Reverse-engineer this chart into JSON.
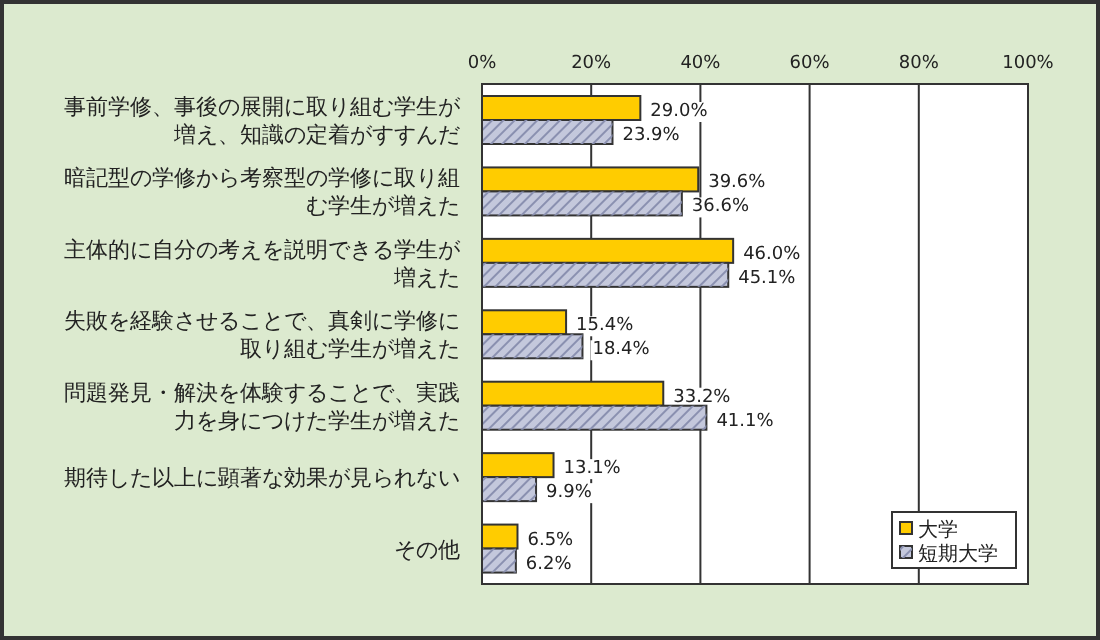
{
  "chart_data": {
    "type": "bar",
    "orientation": "horizontal",
    "categories": [
      "事前学修、事後の展開に取り組む学生が増え、知識の定着がすすんだ",
      "暗記型の学修から考察型の学修に取り組む学生が増えた",
      "主体的に自分の考えを説明できる学生が増えた",
      "失敗を経験させることで、真剣に学修に取り組む学生が増えた",
      "問題発見・解決を体験することで、実践力を身につけた学生が増えた",
      "期待した以上に顕著な効果が見られない",
      "その他"
    ],
    "series": [
      {
        "name": "大学",
        "color": "#ffcc00",
        "values": [
          29.0,
          39.6,
          46.0,
          15.4,
          33.2,
          13.1,
          6.5
        ],
        "value_labels": [
          "29.0%",
          "39.6%",
          "46.0%",
          "15.4%",
          "33.2%",
          "13.1%",
          "6.5%"
        ]
      },
      {
        "name": "短期大学",
        "color": "#c4c8dc",
        "values": [
          23.9,
          36.6,
          45.1,
          18.4,
          41.1,
          9.9,
          6.2
        ],
        "value_labels": [
          "23.9%",
          "36.6%",
          "45.1%",
          "18.4%",
          "41.1%",
          "9.9%",
          "6.2%"
        ]
      }
    ],
    "xlim": [
      0,
      100
    ],
    "xticks": [
      {
        "value": 0,
        "label": "0%"
      },
      {
        "value": 20,
        "label": "20%"
      },
      {
        "value": 40,
        "label": "40%"
      },
      {
        "value": 60,
        "label": "60%"
      },
      {
        "value": 80,
        "label": "80%"
      },
      {
        "value": 100,
        "label": "100%"
      }
    ],
    "grid": "x",
    "legend": "bottom right"
  }
}
